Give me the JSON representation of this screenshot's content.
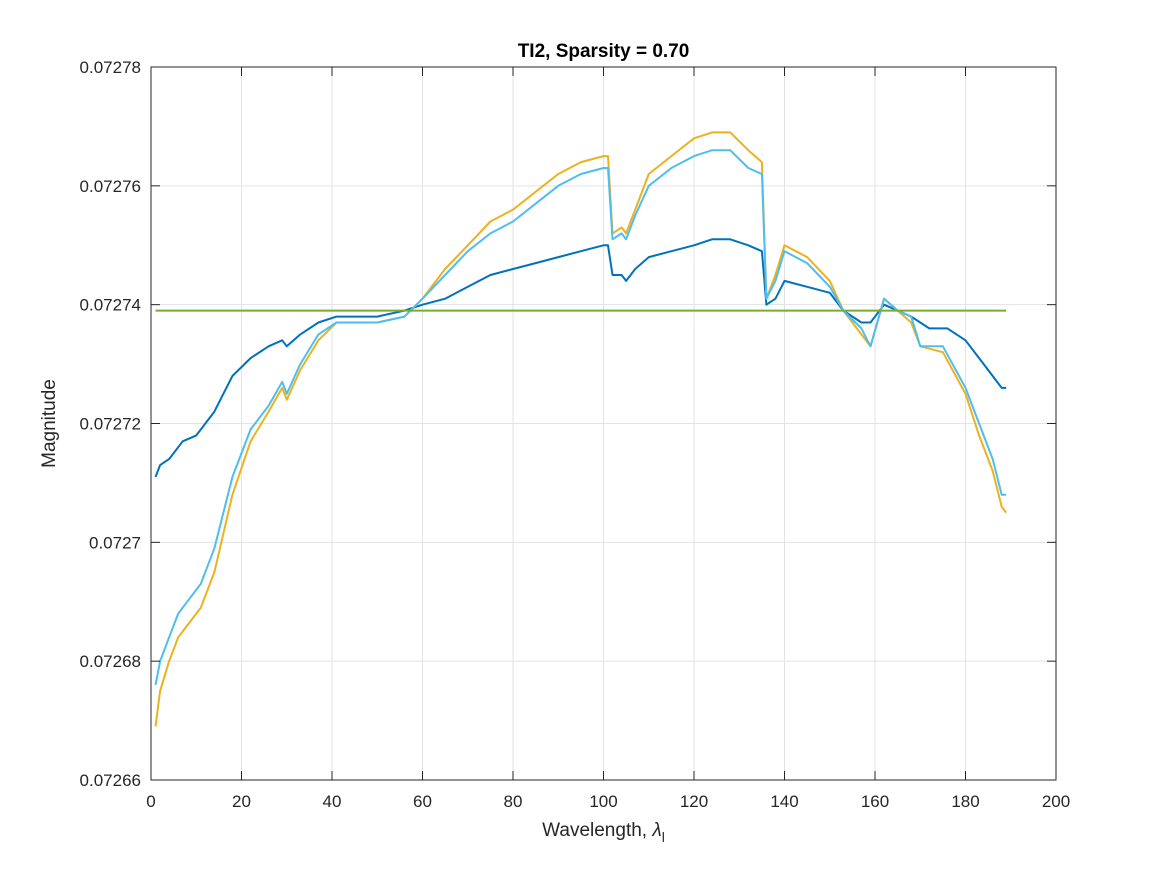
{
  "chart_data": {
    "type": "line",
    "title": "TI2, Sparsity = 0.70",
    "xlabel": "Wavelength, ",
    "xlabel_symbol": "λ",
    "xlabel_subscript": "l",
    "ylabel": "Magnitude",
    "xlim": [
      0,
      200
    ],
    "ylim": [
      0.07266,
      0.07278
    ],
    "xticks": [
      0,
      20,
      40,
      60,
      80,
      100,
      120,
      140,
      160,
      180,
      200
    ],
    "xtick_labels": [
      "0",
      "20",
      "40",
      "60",
      "80",
      "100",
      "120",
      "140",
      "160",
      "180",
      "200"
    ],
    "yticks": [
      0.07266,
      0.07268,
      0.0727,
      0.07272,
      0.07274,
      0.07276,
      0.07278
    ],
    "ytick_labels": [
      "0.07266",
      "0.07268",
      "0.0727",
      "0.07272",
      "0.07274",
      "0.07276",
      "0.07278"
    ],
    "grid": true,
    "series": [
      {
        "color": "#0072BD",
        "points": [
          [
            1,
            0.072711
          ],
          [
            2,
            0.072713
          ],
          [
            4,
            0.072714
          ],
          [
            7,
            0.072717
          ],
          [
            10,
            0.072718
          ],
          [
            14,
            0.072722
          ],
          [
            18,
            0.072728
          ],
          [
            22,
            0.072731
          ],
          [
            26,
            0.072733
          ],
          [
            29,
            0.072734
          ],
          [
            30,
            0.072733
          ],
          [
            33,
            0.072735
          ],
          [
            37,
            0.072737
          ],
          [
            41,
            0.072738
          ],
          [
            45,
            0.072738
          ],
          [
            50,
            0.072738
          ],
          [
            56,
            0.072739
          ],
          [
            60,
            0.07274
          ],
          [
            65,
            0.072741
          ],
          [
            70,
            0.072743
          ],
          [
            75,
            0.072745
          ],
          [
            80,
            0.072746
          ],
          [
            85,
            0.072747
          ],
          [
            90,
            0.072748
          ],
          [
            95,
            0.072749
          ],
          [
            100,
            0.07275
          ],
          [
            101,
            0.07275
          ],
          [
            102,
            0.072745
          ],
          [
            104,
            0.072745
          ],
          [
            105,
            0.072744
          ],
          [
            107,
            0.072746
          ],
          [
            110,
            0.072748
          ],
          [
            115,
            0.072749
          ],
          [
            120,
            0.07275
          ],
          [
            124,
            0.072751
          ],
          [
            128,
            0.072751
          ],
          [
            132,
            0.07275
          ],
          [
            135,
            0.072749
          ],
          [
            136,
            0.07274
          ],
          [
            138,
            0.072741
          ],
          [
            140,
            0.072744
          ],
          [
            145,
            0.072743
          ],
          [
            150,
            0.072742
          ],
          [
            153,
            0.072739
          ],
          [
            157,
            0.072737
          ],
          [
            159,
            0.072737
          ],
          [
            162,
            0.07274
          ],
          [
            165,
            0.072739
          ],
          [
            168,
            0.072738
          ],
          [
            172,
            0.072736
          ],
          [
            176,
            0.072736
          ],
          [
            180,
            0.072734
          ],
          [
            183,
            0.072731
          ],
          [
            186,
            0.072728
          ],
          [
            188,
            0.072726
          ],
          [
            189,
            0.072726
          ]
        ]
      },
      {
        "color": "#EDB120",
        "points": [
          [
            1,
            0.072669
          ],
          [
            2,
            0.072675
          ],
          [
            4,
            0.07268
          ],
          [
            6,
            0.072684
          ],
          [
            8,
            0.072686
          ],
          [
            11,
            0.072689
          ],
          [
            14,
            0.072695
          ],
          [
            18,
            0.072708
          ],
          [
            22,
            0.072717
          ],
          [
            26,
            0.072722
          ],
          [
            29,
            0.072726
          ],
          [
            30,
            0.072724
          ],
          [
            33,
            0.072729
          ],
          [
            37,
            0.072734
          ],
          [
            41,
            0.072737
          ],
          [
            45,
            0.072737
          ],
          [
            50,
            0.072737
          ],
          [
            56,
            0.072738
          ],
          [
            60,
            0.072741
          ],
          [
            65,
            0.072746
          ],
          [
            70,
            0.07275
          ],
          [
            75,
            0.072754
          ],
          [
            80,
            0.072756
          ],
          [
            85,
            0.072759
          ],
          [
            90,
            0.072762
          ],
          [
            95,
            0.072764
          ],
          [
            100,
            0.072765
          ],
          [
            101,
            0.072765
          ],
          [
            102,
            0.072752
          ],
          [
            104,
            0.072753
          ],
          [
            105,
            0.072752
          ],
          [
            107,
            0.072756
          ],
          [
            110,
            0.072762
          ],
          [
            115,
            0.072765
          ],
          [
            120,
            0.072768
          ],
          [
            124,
            0.072769
          ],
          [
            128,
            0.072769
          ],
          [
            132,
            0.072766
          ],
          [
            135,
            0.072764
          ],
          [
            136,
            0.072741
          ],
          [
            138,
            0.072745
          ],
          [
            140,
            0.07275
          ],
          [
            145,
            0.072748
          ],
          [
            150,
            0.072744
          ],
          [
            153,
            0.072739
          ],
          [
            157,
            0.072735
          ],
          [
            159,
            0.072733
          ],
          [
            162,
            0.072741
          ],
          [
            165,
            0.072739
          ],
          [
            168,
            0.072737
          ],
          [
            170,
            0.072733
          ],
          [
            175,
            0.072732
          ],
          [
            180,
            0.072725
          ],
          [
            183,
            0.072718
          ],
          [
            186,
            0.072712
          ],
          [
            188,
            0.072706
          ],
          [
            189,
            0.072705
          ]
        ]
      },
      {
        "color": "#4DBEEE",
        "points": [
          [
            1,
            0.072676
          ],
          [
            2,
            0.07268
          ],
          [
            4,
            0.072684
          ],
          [
            6,
            0.072688
          ],
          [
            8,
            0.07269
          ],
          [
            11,
            0.072693
          ],
          [
            14,
            0.072699
          ],
          [
            18,
            0.072711
          ],
          [
            22,
            0.072719
          ],
          [
            26,
            0.072723
          ],
          [
            29,
            0.072727
          ],
          [
            30,
            0.072725
          ],
          [
            33,
            0.07273
          ],
          [
            37,
            0.072735
          ],
          [
            41,
            0.072737
          ],
          [
            45,
            0.072737
          ],
          [
            50,
            0.072737
          ],
          [
            56,
            0.072738
          ],
          [
            60,
            0.072741
          ],
          [
            65,
            0.072745
          ],
          [
            70,
            0.072749
          ],
          [
            75,
            0.072752
          ],
          [
            80,
            0.072754
          ],
          [
            85,
            0.072757
          ],
          [
            90,
            0.07276
          ],
          [
            95,
            0.072762
          ],
          [
            100,
            0.072763
          ],
          [
            101,
            0.072763
          ],
          [
            102,
            0.072751
          ],
          [
            104,
            0.072752
          ],
          [
            105,
            0.072751
          ],
          [
            107,
            0.072755
          ],
          [
            110,
            0.07276
          ],
          [
            115,
            0.072763
          ],
          [
            120,
            0.072765
          ],
          [
            124,
            0.072766
          ],
          [
            128,
            0.072766
          ],
          [
            132,
            0.072763
          ],
          [
            135,
            0.072762
          ],
          [
            136,
            0.072741
          ],
          [
            138,
            0.072744
          ],
          [
            140,
            0.072749
          ],
          [
            145,
            0.072747
          ],
          [
            150,
            0.072743
          ],
          [
            153,
            0.072739
          ],
          [
            157,
            0.072736
          ],
          [
            159,
            0.072733
          ],
          [
            162,
            0.072741
          ],
          [
            165,
            0.072739
          ],
          [
            168,
            0.072738
          ],
          [
            170,
            0.072733
          ],
          [
            175,
            0.072733
          ],
          [
            180,
            0.072726
          ],
          [
            183,
            0.07272
          ],
          [
            186,
            0.072714
          ],
          [
            188,
            0.072708
          ],
          [
            189,
            0.072708
          ]
        ]
      },
      {
        "color": "#77AC30",
        "points": [
          [
            1,
            0.072739
          ],
          [
            189,
            0.072739
          ]
        ]
      }
    ]
  }
}
